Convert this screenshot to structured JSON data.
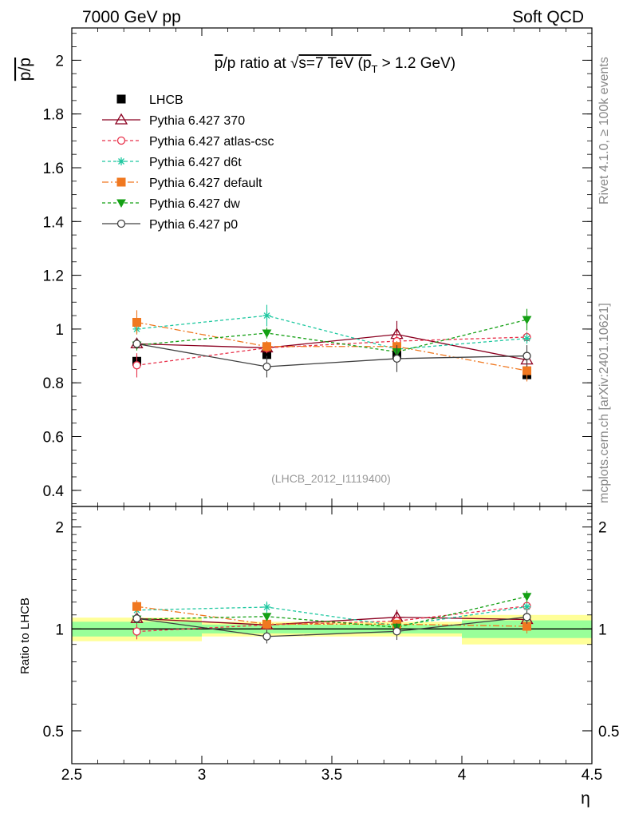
{
  "header": {
    "left": "7000 GeV pp",
    "right": "Soft QCD"
  },
  "side_labels": {
    "rivet": "Rivet 4.1.0, ≥ 100k events",
    "url": "mcplots.cern.ch [arXiv:2401.10621]"
  },
  "chart_data": {
    "type": "line",
    "title": "p̄/p ratio at √s=7 TeV (pT > 1.2 GeV)",
    "title_parts": {
      "pre": "p",
      "mid": "/p ratio at ",
      "sqrt": "√",
      "s_rest": "s=7 TeV (p",
      "sub": "T",
      "post": " > 1.2 GeV)"
    },
    "analysis_id": "(LHCB_2012_I1119400)",
    "ylabel_top": "p/p",
    "ylabel_bottom": "Ratio to LHCB",
    "xlabel": "η",
    "xlim": [
      2.5,
      4.5
    ],
    "ylim_top": [
      0.34,
      2.12
    ],
    "ylim_bottom_log": [
      0.4,
      2.3
    ],
    "x_ticks": [
      "2.5",
      "3",
      "3.5",
      "4",
      "4.5"
    ],
    "y_ticks_top": [
      "0.4",
      "0.6",
      "0.8",
      "1",
      "1.2",
      "1.4",
      "1.6",
      "1.8",
      "2"
    ],
    "y_ticks_bottom": [
      "0.5",
      "1",
      "2"
    ],
    "x": [
      2.75,
      3.25,
      3.75,
      4.25
    ],
    "data": {
      "name": "LHCB",
      "values": [
        0.88,
        0.905,
        0.905,
        0.83
      ],
      "errors": [
        0.02,
        0.02,
        0.02,
        0.02
      ],
      "bins": [
        [
          2.5,
          3.0
        ],
        [
          3.0,
          3.5
        ],
        [
          3.5,
          4.0
        ],
        [
          4.0,
          4.5
        ]
      ],
      "band_inner": [
        0.05,
        0.03,
        0.03,
        0.06
      ],
      "band_outer": [
        0.08,
        0.05,
        0.05,
        0.1
      ]
    },
    "series": [
      {
        "name": "Pythia 6.427 370",
        "values": [
          0.945,
          0.93,
          0.98,
          0.885
        ],
        "errors": [
          0.02,
          0.02,
          0.05,
          0.03
        ],
        "color": "#8b0020",
        "marker": "triangle-open",
        "dash": ""
      },
      {
        "name": "Pythia 6.427 atlas-csc",
        "values": [
          0.865,
          0.93,
          0.955,
          0.97
        ],
        "errors": [
          0.045,
          0.02,
          0.03,
          0.02
        ],
        "color": "#e8324b",
        "marker": "circle-open",
        "dash": "4,3"
      },
      {
        "name": "Pythia 6.427 d6t",
        "values": [
          1.0,
          1.05,
          0.925,
          0.965
        ],
        "errors": [
          0.02,
          0.04,
          0.02,
          0.02
        ],
        "color": "#1ec8a0",
        "marker": "star",
        "dash": "4,3"
      },
      {
        "name": "Pythia 6.427 default",
        "values": [
          1.025,
          0.935,
          0.935,
          0.845
        ],
        "errors": [
          0.045,
          0.02,
          0.02,
          0.04
        ],
        "color": "#f07820",
        "marker": "square",
        "dash": "8,3,2,3"
      },
      {
        "name": "Pythia 6.427 dw",
        "values": [
          0.94,
          0.985,
          0.915,
          1.035
        ],
        "errors": [
          0.02,
          0.02,
          0.02,
          0.04
        ],
        "color": "#14a014",
        "marker": "triangle-down",
        "dash": "4,3"
      },
      {
        "name": "Pythia 6.427 p0",
        "values": [
          0.945,
          0.86,
          0.89,
          0.9
        ],
        "errors": [
          0.02,
          0.04,
          0.05,
          0.04
        ],
        "color": "#404040",
        "marker": "circle-open",
        "dash": ""
      }
    ]
  }
}
